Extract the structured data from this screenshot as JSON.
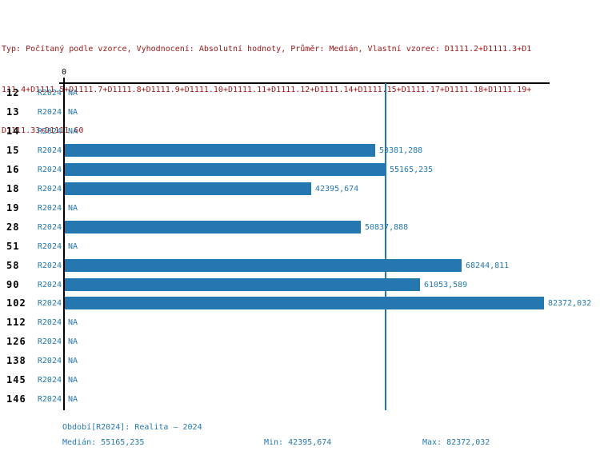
{
  "header": {
    "lines": [
      "Typ: Počítaný podle vzorce, Vyhodnocení: Absolutní hodnoty, Průměr: Medián, Vlastní vzorec: D1111.2+D1111.3+D1",
      "111.4+D1111.5+D1111.7+D1111.8+D1111.9+D1111.10+D1111.11+D1111.12+D1111.14+D1111.15+D1111.17+D1111.18+D1111.19+",
      "D1111.33+D1111.60"
    ],
    "color": "#9c1414"
  },
  "chart_data": {
    "type": "bar",
    "orientation": "horizontal",
    "axis_zero_label": "0",
    "na_label": "NA",
    "xlim": [
      0,
      84000
    ],
    "xmax_value": 82372.032,
    "median_value": 55165.235,
    "rows": [
      {
        "id": "12",
        "period": "R2024",
        "value": null,
        "label": "NA"
      },
      {
        "id": "13",
        "period": "R2024",
        "value": null,
        "label": "NA"
      },
      {
        "id": "14",
        "period": "R2024",
        "value": null,
        "label": "NA"
      },
      {
        "id": "15",
        "period": "R2024",
        "value": 53381.288,
        "label": "53381,288"
      },
      {
        "id": "16",
        "period": "R2024",
        "value": 55165.235,
        "label": "55165,235"
      },
      {
        "id": "18",
        "period": "R2024",
        "value": 42395.674,
        "label": "42395,674"
      },
      {
        "id": "19",
        "period": "R2024",
        "value": null,
        "label": "NA"
      },
      {
        "id": "28",
        "period": "R2024",
        "value": 50837.888,
        "label": "50837,888"
      },
      {
        "id": "51",
        "period": "R2024",
        "value": null,
        "label": "NA"
      },
      {
        "id": "58",
        "period": "R2024",
        "value": 68244.811,
        "label": "68244,811"
      },
      {
        "id": "90",
        "period": "R2024",
        "value": 61053.589,
        "label": "61053,589"
      },
      {
        "id": "102",
        "period": "R2024",
        "value": 82372.032,
        "label": "82372,032"
      },
      {
        "id": "112",
        "period": "R2024",
        "value": null,
        "label": "NA"
      },
      {
        "id": "126",
        "period": "R2024",
        "value": null,
        "label": "NA"
      },
      {
        "id": "138",
        "period": "R2024",
        "value": null,
        "label": "NA"
      },
      {
        "id": "145",
        "period": "R2024",
        "value": null,
        "label": "NA"
      },
      {
        "id": "146",
        "period": "R2024",
        "value": null,
        "label": "NA"
      }
    ],
    "colors": {
      "bar": "#2478af",
      "median_line": "#2478af",
      "axis": "#000000",
      "value_text": "#2478af"
    }
  },
  "footer": {
    "period": "Období[R2024]: Realita – 2024",
    "median": "Medián: 55165,235",
    "min": "Min: 42395,674",
    "max": "Max: 82372,032"
  }
}
